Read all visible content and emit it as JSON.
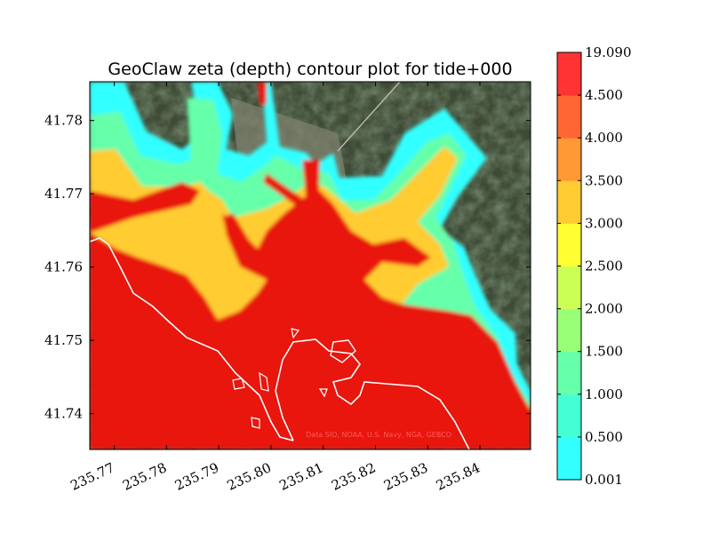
{
  "chart_data": {
    "type": "heatmap",
    "title": "GeoClaw zeta (depth) contour plot for tide+000",
    "xlabel": "",
    "ylabel": "",
    "xlim": [
      235.7653,
      235.8497
    ],
    "ylim": [
      41.7351,
      41.7853
    ],
    "x_ticks": [
      235.77,
      235.78,
      235.79,
      235.8,
      235.81,
      235.82,
      235.83,
      235.84
    ],
    "x_tick_labels": [
      "235.77",
      "235.78",
      "235.79",
      "235.80",
      "235.81",
      "235.82",
      "235.83",
      "235.84"
    ],
    "y_ticks": [
      41.74,
      41.75,
      41.76,
      41.77,
      41.78
    ],
    "y_tick_labels": [
      "41.74",
      "41.75",
      "41.76",
      "41.77",
      "41.78"
    ],
    "background": "satellite imagery",
    "attribution": "Data SIO, NOAA, U.S. Navy, NGA, GEBCO",
    "colorbar": {
      "labels": [
        "0.001",
        "0.500",
        "1.000",
        "1.500",
        "2.000",
        "2.500",
        "3.000",
        "3.500",
        "4.000",
        "4.500",
        "19.090"
      ],
      "colors": [
        "#33ffff",
        "#44ffd6",
        "#66ffaa",
        "#99ff77",
        "#ccff55",
        "#ffff33",
        "#ffcc33",
        "#ff9933",
        "#ff6633",
        "#ff3333"
      ]
    }
  }
}
